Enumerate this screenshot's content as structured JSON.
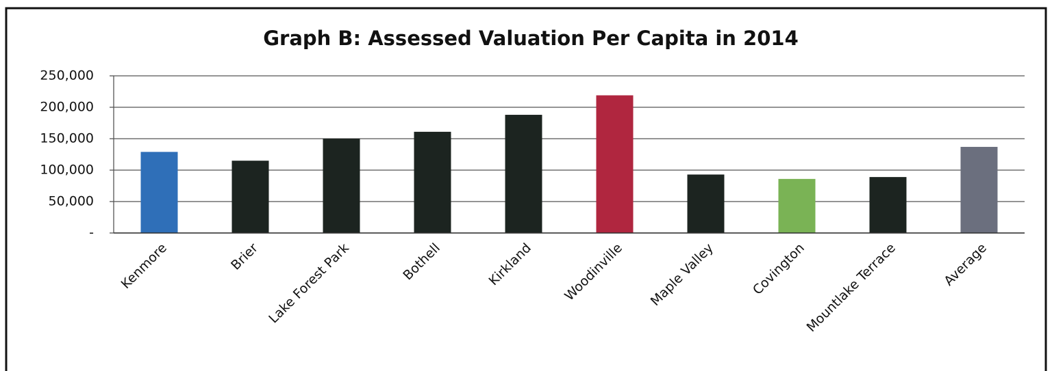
{
  "chart_data": {
    "type": "bar",
    "title": "Graph B: Assessed Valuation Per Capita in 2014",
    "categories": [
      "Kenmore",
      "Brier",
      "Lake Forest Park",
      "Bothell",
      "Kirkland",
      "Woodinville",
      "Maple Valley",
      "Covington",
      "Mountlake Terrace",
      "Average"
    ],
    "values": [
      129000,
      115000,
      150000,
      161000,
      188000,
      219000,
      93000,
      86000,
      89000,
      137000
    ],
    "colors": [
      "#2f6fb8",
      "#1c2420",
      "#1c2420",
      "#1c2420",
      "#1c2420",
      "#b0263f",
      "#1c2420",
      "#7ab355",
      "#1c2420",
      "#6b6f7e"
    ],
    "ylim": [
      0,
      250000
    ],
    "yticks": [
      {
        "value": 0,
        "label": "-"
      },
      {
        "value": 50000,
        "label": "50,000"
      },
      {
        "value": 100000,
        "label": "100,000"
      },
      {
        "value": 150000,
        "label": "150,000"
      },
      {
        "value": 200000,
        "label": "200,000"
      },
      {
        "value": 250000,
        "label": "250,000"
      }
    ],
    "grid": true
  }
}
